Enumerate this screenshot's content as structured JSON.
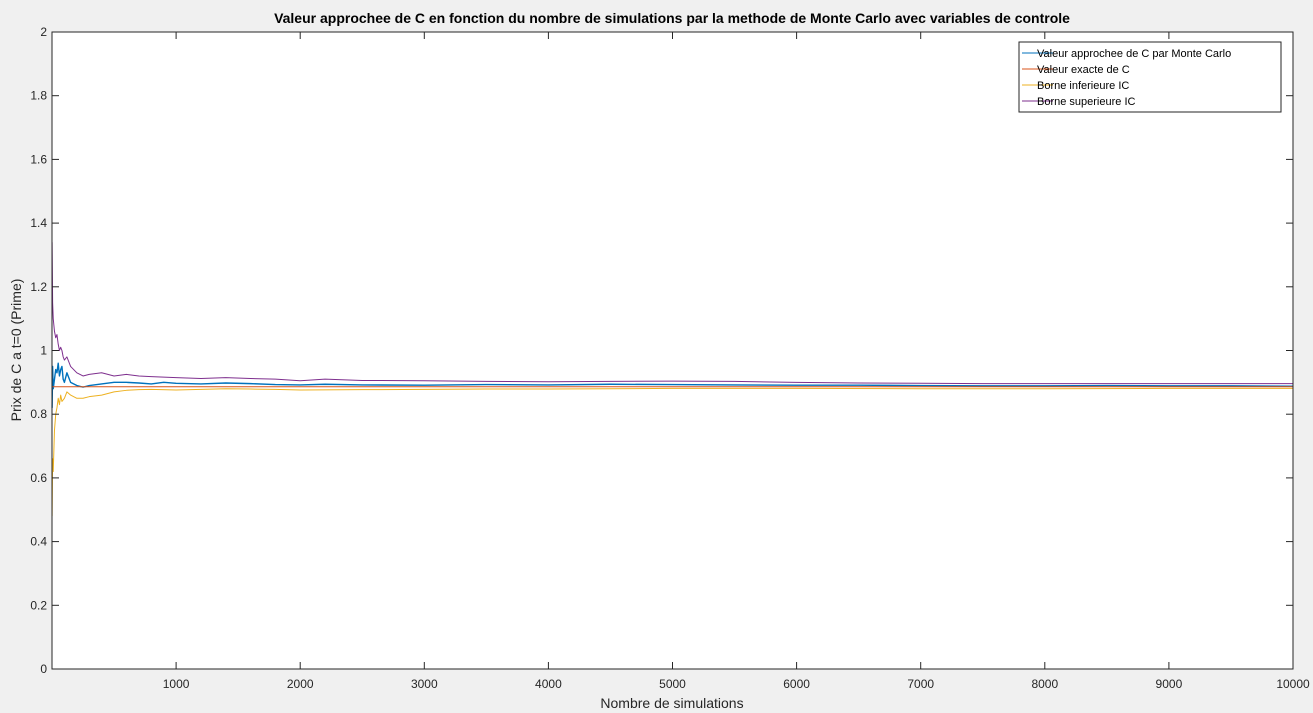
{
  "chart_data": {
    "type": "line",
    "title": "Valeur approchee de C en fonction du nombre de simulations par la methode de Monte Carlo avec variables de controle",
    "xlabel": "Nombre de simulations",
    "ylabel": "Prix de C a t=0 (Prime)",
    "xlim": [
      0,
      10000
    ],
    "ylim": [
      0,
      2
    ],
    "x_ticks": [
      1000,
      2000,
      3000,
      4000,
      5000,
      6000,
      7000,
      8000,
      9000,
      10000
    ],
    "y_ticks": [
      0,
      0.2,
      0.4,
      0.6,
      0.8,
      1,
      1.2,
      1.4,
      1.6,
      1.8,
      2
    ],
    "grid": false,
    "legend_position": "top-right",
    "series": [
      {
        "name": "Valeur approchee de C par Monte Carlo",
        "color": "#0072bd",
        "x": [
          1,
          5,
          10,
          20,
          30,
          40,
          50,
          60,
          70,
          80,
          90,
          100,
          120,
          150,
          200,
          250,
          300,
          400,
          500,
          600,
          700,
          800,
          900,
          1000,
          1200,
          1400,
          1600,
          1800,
          2000,
          2200,
          2500,
          3000,
          3500,
          4000,
          4500,
          5000,
          5500,
          6000,
          6500,
          7000,
          7500,
          8000,
          8500,
          9000,
          9500,
          10000
        ],
        "values": [
          0.82,
          0.95,
          0.88,
          0.91,
          0.94,
          0.93,
          0.96,
          0.92,
          0.94,
          0.95,
          0.91,
          0.9,
          0.93,
          0.9,
          0.89,
          0.885,
          0.89,
          0.895,
          0.9,
          0.9,
          0.898,
          0.895,
          0.9,
          0.897,
          0.895,
          0.898,
          0.896,
          0.893,
          0.892,
          0.894,
          0.892,
          0.891,
          0.893,
          0.892,
          0.894,
          0.893,
          0.892,
          0.891,
          0.891,
          0.89,
          0.889,
          0.889,
          0.89,
          0.889,
          0.889,
          0.888
        ]
      },
      {
        "name": "Valeur exacte de C",
        "color": "#d95319",
        "x": [
          0,
          10000
        ],
        "values": [
          0.886,
          0.886
        ]
      },
      {
        "name": "Borne inferieure IC",
        "color": "#edb120",
        "x": [
          1,
          5,
          10,
          20,
          30,
          40,
          50,
          60,
          70,
          80,
          100,
          120,
          150,
          200,
          250,
          300,
          400,
          500,
          600,
          700,
          800,
          1000,
          1200,
          1400,
          1600,
          1800,
          2000,
          2500,
          3000,
          3500,
          4000,
          4500,
          5000,
          6000,
          7000,
          8000,
          9000,
          10000
        ],
        "values": [
          0.48,
          0.66,
          0.62,
          0.75,
          0.8,
          0.82,
          0.85,
          0.83,
          0.86,
          0.84,
          0.85,
          0.87,
          0.86,
          0.85,
          0.85,
          0.855,
          0.86,
          0.87,
          0.875,
          0.877,
          0.878,
          0.876,
          0.878,
          0.88,
          0.879,
          0.878,
          0.876,
          0.877,
          0.878,
          0.879,
          0.879,
          0.88,
          0.881,
          0.881,
          0.88,
          0.88,
          0.881,
          0.881
        ]
      },
      {
        "name": "Borne superieure IC",
        "color": "#7e2f8e",
        "x": [
          1,
          5,
          10,
          20,
          30,
          40,
          50,
          60,
          70,
          80,
          90,
          100,
          120,
          150,
          200,
          250,
          300,
          400,
          500,
          600,
          700,
          800,
          1000,
          1200,
          1400,
          1600,
          1800,
          2000,
          2200,
          2500,
          3000,
          3500,
          4000,
          4500,
          5000,
          5500,
          6000,
          6500,
          7000,
          7500,
          8000,
          8500,
          9000,
          9500,
          10000
        ],
        "values": [
          1.34,
          1.15,
          1.1,
          1.06,
          1.04,
          1.05,
          1.02,
          1.0,
          1.01,
          1.0,
          0.98,
          0.97,
          0.98,
          0.95,
          0.93,
          0.92,
          0.925,
          0.93,
          0.92,
          0.925,
          0.92,
          0.918,
          0.915,
          0.912,
          0.915,
          0.912,
          0.91,
          0.905,
          0.91,
          0.906,
          0.905,
          0.903,
          0.902,
          0.903,
          0.904,
          0.903,
          0.9,
          0.898,
          0.897,
          0.896,
          0.896,
          0.896,
          0.896,
          0.896,
          0.896
        ]
      }
    ]
  }
}
